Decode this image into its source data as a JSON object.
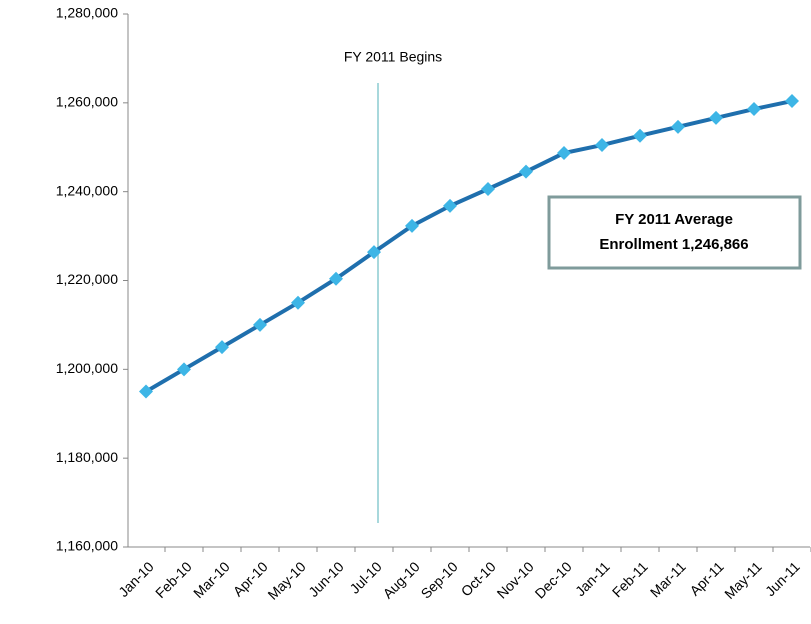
{
  "chart_data": {
    "type": "line",
    "categories": [
      "Jan-10",
      "Feb-10",
      "Mar-10",
      "Apr-10",
      "May-10",
      "Jun-10",
      "Jul-10",
      "Aug-10",
      "Sep-10",
      "Oct-10",
      "Nov-10",
      "Dec-10",
      "Jan-11",
      "Feb-11",
      "Mar-11",
      "Apr-11",
      "May-11",
      "Jun-11"
    ],
    "series": [
      {
        "name": "Enrollment",
        "color": "#1f6fad",
        "marker_color": "#3db5e6",
        "values": [
          1195000,
          1200000,
          1205000,
          1210000,
          1215000,
          1220400,
          1226400,
          1232300,
          1236800,
          1240600,
          1244500,
          1248700,
          1250500,
          1252600,
          1254600,
          1256600,
          1258600,
          1260400
        ]
      }
    ],
    "ylim": [
      1160000,
      1280000
    ],
    "yticks": [
      {
        "value": 1160000,
        "label": "1,160,000"
      },
      {
        "value": 1180000,
        "label": "1,180,000"
      },
      {
        "value": 1200000,
        "label": "1,200,000"
      },
      {
        "value": 1220000,
        "label": "1,220,000"
      },
      {
        "value": 1240000,
        "label": "1,240,000"
      },
      {
        "value": 1260000,
        "label": "1,260,000"
      },
      {
        "value": 1280000,
        "label": "1,280,000"
      }
    ],
    "annotations": [
      "FY 2011 Begins",
      "FY 2011 Average",
      "Enrollment 1,246,866"
    ],
    "grid": false
  }
}
